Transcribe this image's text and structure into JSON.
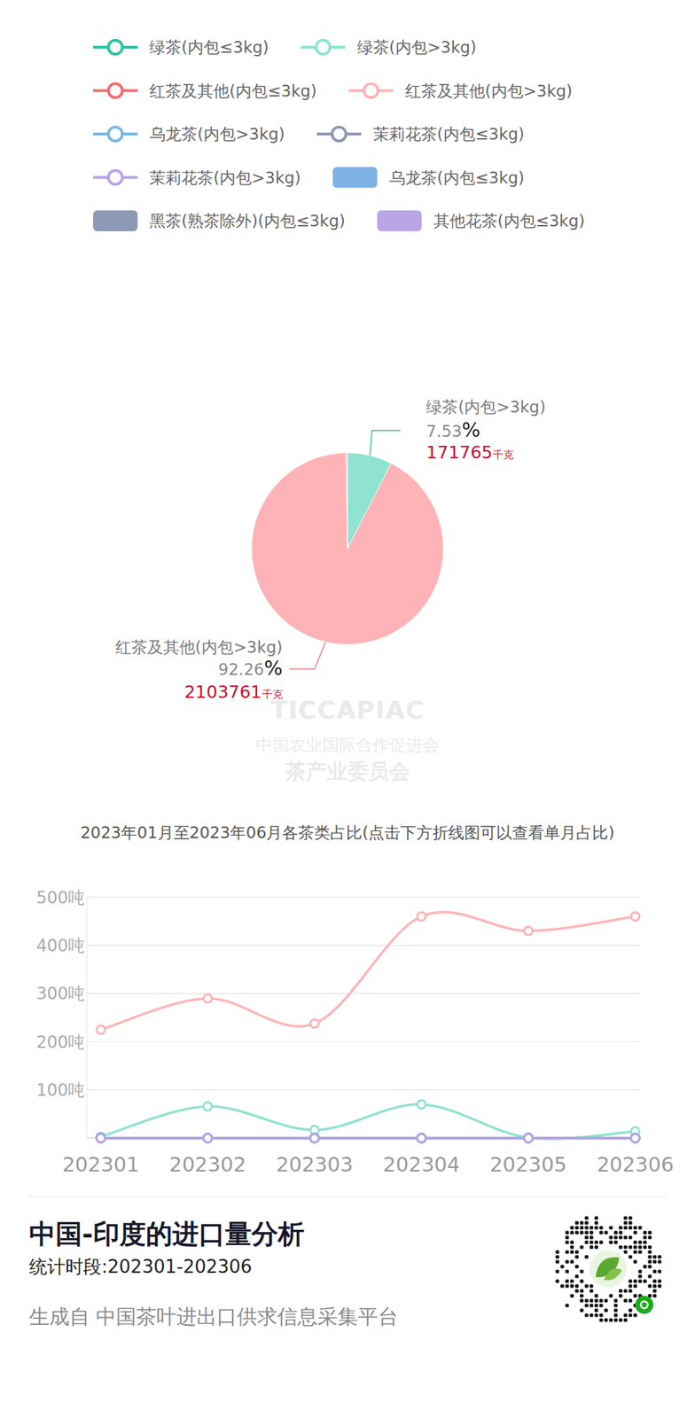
{
  "chart_data": [
    {
      "type": "pie",
      "categories": [
        "绿茶(内包>3kg)",
        "红茶及其他(内包>3kg)",
        "乌龙茶(内包≤3kg)",
        "茉莉花茶(内包≤3kg)"
      ],
      "values": [
        7.53,
        92.26,
        0.08,
        0.13
      ],
      "colors": [
        "#8fe3d0",
        "#ffb3b6",
        "#7fb3e6",
        "#8e97b3"
      ],
      "value_labels": [
        "7.53%",
        "92.26%",
        null,
        null
      ],
      "weights": [
        171765,
        2103761,
        null,
        null
      ],
      "weight_unit": "千克",
      "data_labels": true
    },
    {
      "type": "line",
      "title": "2023年01月至2023年06月各茶类占比(点击下方折线图可以查看单月占比)",
      "categories": [
        "202301",
        "202302",
        "202303",
        "202304",
        "202305",
        "202306"
      ],
      "series": [
        {
          "name": "绿茶(内包≤3kg)",
          "color": "#2ebfa2",
          "type": "line",
          "marker": "circle",
          "values": [
            0,
            0,
            0,
            0,
            0,
            0
          ]
        },
        {
          "name": "绿茶(内包>3kg)",
          "color": "#8fe3d0",
          "type": "line",
          "marker": "circle",
          "values": [
            3,
            66,
            17,
            70,
            1,
            14
          ]
        },
        {
          "name": "红茶及其他(内包≤3kg)",
          "color": "#f06b6b",
          "type": "line",
          "marker": "circle",
          "values": [
            0,
            0,
            0,
            0,
            0,
            0
          ]
        },
        {
          "name": "红茶及其他(内包>3kg)",
          "color": "#ffb3b6",
          "type": "line",
          "marker": "circle",
          "values": [
            225,
            290,
            238,
            460,
            430,
            460
          ]
        },
        {
          "name": "乌龙茶(内包>3kg)",
          "color": "#7ab6e2",
          "type": "line",
          "marker": "circle",
          "values": [
            0,
            0,
            0,
            0,
            0,
            0
          ]
        },
        {
          "name": "茉莉花茶(内包≤3kg)",
          "color": "#8e97b3",
          "type": "line",
          "marker": "circle",
          "values": [
            0.5,
            0.5,
            0.5,
            0.5,
            0.5,
            0.5
          ]
        },
        {
          "name": "茉莉花茶(内包>3kg)",
          "color": "#b7a2e8",
          "type": "line",
          "marker": "circle",
          "values": [
            0,
            0,
            0,
            0,
            0,
            0
          ]
        },
        {
          "name": "乌龙茶(内包≤3kg)",
          "color": "#7fb3e6",
          "type": "bar",
          "values": [
            0,
            0.5,
            0.5,
            0,
            0.4,
            0.4
          ]
        },
        {
          "name": "黑茶(熟茶除外)(内包≤3kg)",
          "color": "#8e9ab5",
          "type": "bar",
          "values": [
            0,
            0,
            0,
            0,
            0,
            0
          ]
        },
        {
          "name": "其他花茶(内包≤3kg)",
          "color": "#baa6e6",
          "type": "bar",
          "values": [
            0,
            0,
            0,
            0,
            0,
            0
          ]
        }
      ],
      "ylim": [
        0,
        500
      ],
      "yticks": [
        {
          "value": 100,
          "label": "100吨"
        },
        {
          "value": 200,
          "label": "200吨"
        },
        {
          "value": 300,
          "label": "300吨"
        },
        {
          "value": 400,
          "label": "400吨"
        },
        {
          "value": 500,
          "label": "500吨"
        }
      ],
      "grid": true,
      "legend": "top"
    }
  ],
  "page": {
    "title": "中国-印度的进口量分析",
    "period": "统计时段:202301-202306",
    "source": "生成自 中国茶叶进出口供求信息采集平台",
    "watermark": [
      "TICCAPIAC",
      "中国农业国际合作促进会",
      "茶产业委员会"
    ]
  }
}
